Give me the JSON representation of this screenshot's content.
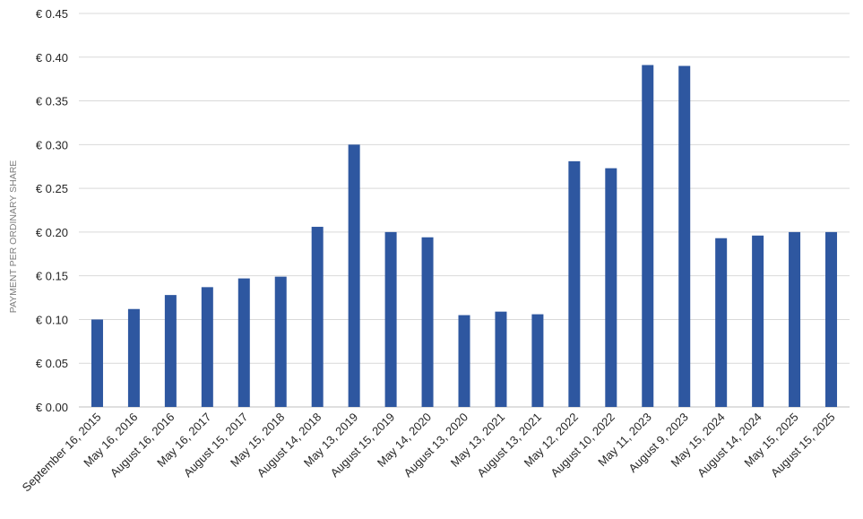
{
  "chart_data": {
    "type": "bar",
    "ylabel": "PAYMENT PER ORDINARY SHARE",
    "xlabel": "",
    "ylim": [
      0,
      0.45
    ],
    "y_ticks": [
      {
        "value": 0.0,
        "label": "€ 0.00"
      },
      {
        "value": 0.05,
        "label": "€ 0.05"
      },
      {
        "value": 0.1,
        "label": "€ 0.10"
      },
      {
        "value": 0.15,
        "label": "€ 0.15"
      },
      {
        "value": 0.2,
        "label": "€ 0.20"
      },
      {
        "value": 0.25,
        "label": "€ 0.25"
      },
      {
        "value": 0.3,
        "label": "€ 0.30"
      },
      {
        "value": 0.35,
        "label": "€ 0.35"
      },
      {
        "value": 0.4,
        "label": "€ 0.40"
      },
      {
        "value": 0.45,
        "label": "€ 0.45"
      }
    ],
    "grid": true,
    "bar_color": "#2e57a0",
    "categories": [
      "September 16, 2015",
      "May 16, 2016",
      "August 16, 2016",
      "May 16, 2017",
      "August 15, 2017",
      "May 15, 2018",
      "August 14, 2018",
      "May 13, 2019",
      "August 15, 2019",
      "May 14, 2020",
      "August 13, 2020",
      "May 13, 2021",
      "August 13, 2021",
      "May 12, 2022",
      "August 10, 2022",
      "May 11, 2023",
      "August 9, 2023",
      "May 15, 2024",
      "August 14, 2024",
      "May 15, 2025",
      "August 15, 2025"
    ],
    "values": [
      0.1,
      0.112,
      0.128,
      0.137,
      0.147,
      0.149,
      0.206,
      0.3,
      0.2,
      0.194,
      0.105,
      0.109,
      0.106,
      0.281,
      0.273,
      0.391,
      0.39,
      0.193,
      0.196,
      0.2,
      0.2
    ]
  }
}
